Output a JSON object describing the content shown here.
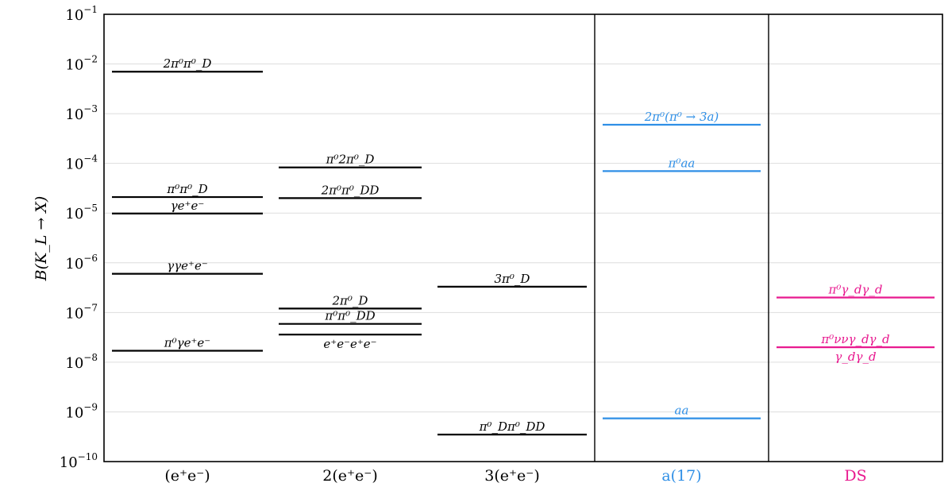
{
  "chart_data": {
    "type": "level-diagram",
    "title": "",
    "ylabel": "B(K_L → X)",
    "xlabel": "",
    "yscale": "log",
    "ylim": [
      1e-10,
      0.1
    ],
    "grid": "horizontal",
    "yticks": [
      {
        "base": "10",
        "exp": "−1",
        "value": 0.1
      },
      {
        "base": "10",
        "exp": "−2",
        "value": 0.01
      },
      {
        "base": "10",
        "exp": "−3",
        "value": 0.001
      },
      {
        "base": "10",
        "exp": "−4",
        "value": 0.0001
      },
      {
        "base": "10",
        "exp": "−5",
        "value": 1e-05
      },
      {
        "base": "10",
        "exp": "−6",
        "value": 1e-06
      },
      {
        "base": "10",
        "exp": "−7",
        "value": 1e-07
      },
      {
        "base": "10",
        "exp": "−8",
        "value": 1e-08
      },
      {
        "base": "10",
        "exp": "−9",
        "value": 1e-09
      },
      {
        "base": "10",
        "exp": "−10",
        "value": 1e-10
      }
    ],
    "categories": [
      "(e⁺e⁻)",
      "2(e⁺e⁻)",
      "3(e⁺e⁻)",
      "a(17)",
      "DS"
    ],
    "category_colors": [
      "#000000",
      "#000000",
      "#000000",
      "#2f8fe6",
      "#e8198f"
    ],
    "series": [
      {
        "name": "(e⁺e⁻)",
        "color": "#000000",
        "levels": [
          {
            "label": "2π⁰π⁰_D",
            "value": 0.007,
            "label_pos": "above"
          },
          {
            "label": "π⁰π⁰_D",
            "value": 2.1e-05,
            "label_pos": "above"
          },
          {
            "label": "γe⁺e⁻",
            "value": 9.8e-06,
            "label_pos": "above"
          },
          {
            "label": "γγe⁺e⁻",
            "value": 6e-07,
            "label_pos": "above"
          },
          {
            "label": "π⁰γe⁺e⁻",
            "value": 1.7e-08,
            "label_pos": "above"
          }
        ]
      },
      {
        "name": "2(e⁺e⁻)",
        "color": "#000000",
        "levels": [
          {
            "label": "π⁰2π⁰_D",
            "value": 8.3e-05,
            "label_pos": "above"
          },
          {
            "label": "2π⁰π⁰_DD",
            "value": 2e-05,
            "label_pos": "above"
          },
          {
            "label": "2π⁰_D",
            "value": 1.2e-07,
            "label_pos": "above"
          },
          {
            "label": "π⁰π⁰_DD",
            "value": 5.9e-08,
            "label_pos": "above"
          },
          {
            "label": "e⁺e⁻e⁺e⁻",
            "value": 3.6e-08,
            "label_pos": "below"
          }
        ]
      },
      {
        "name": "3(e⁺e⁻)",
        "color": "#000000",
        "levels": [
          {
            "label": "3π⁰_D",
            "value": 3.3e-07,
            "label_pos": "above"
          },
          {
            "label": "π⁰_Dπ⁰_DD",
            "value": 3.5e-10,
            "label_pos": "above"
          }
        ]
      },
      {
        "name": "a(17)",
        "color": "#2f8fe6",
        "levels": [
          {
            "label": "2π⁰(π⁰ → 3a)",
            "value": 0.0006,
            "label_pos": "above"
          },
          {
            "label": "π⁰aa",
            "value": 7e-05,
            "label_pos": "above"
          },
          {
            "label": "aa",
            "value": 7.4e-10,
            "label_pos": "above"
          }
        ]
      },
      {
        "name": "DS",
        "color": "#e8198f",
        "levels": [
          {
            "label": "π⁰γ_dγ_d",
            "value": 2e-07,
            "label_pos": "above"
          },
          {
            "label": "π⁰ννγ_dγ_d",
            "value": 2e-08,
            "label_pos": "above"
          },
          {
            "label": "γ_dγ_d",
            "value": 2e-08,
            "label_pos": "below"
          }
        ]
      }
    ],
    "separators_after_category": [
      2,
      3
    ]
  }
}
